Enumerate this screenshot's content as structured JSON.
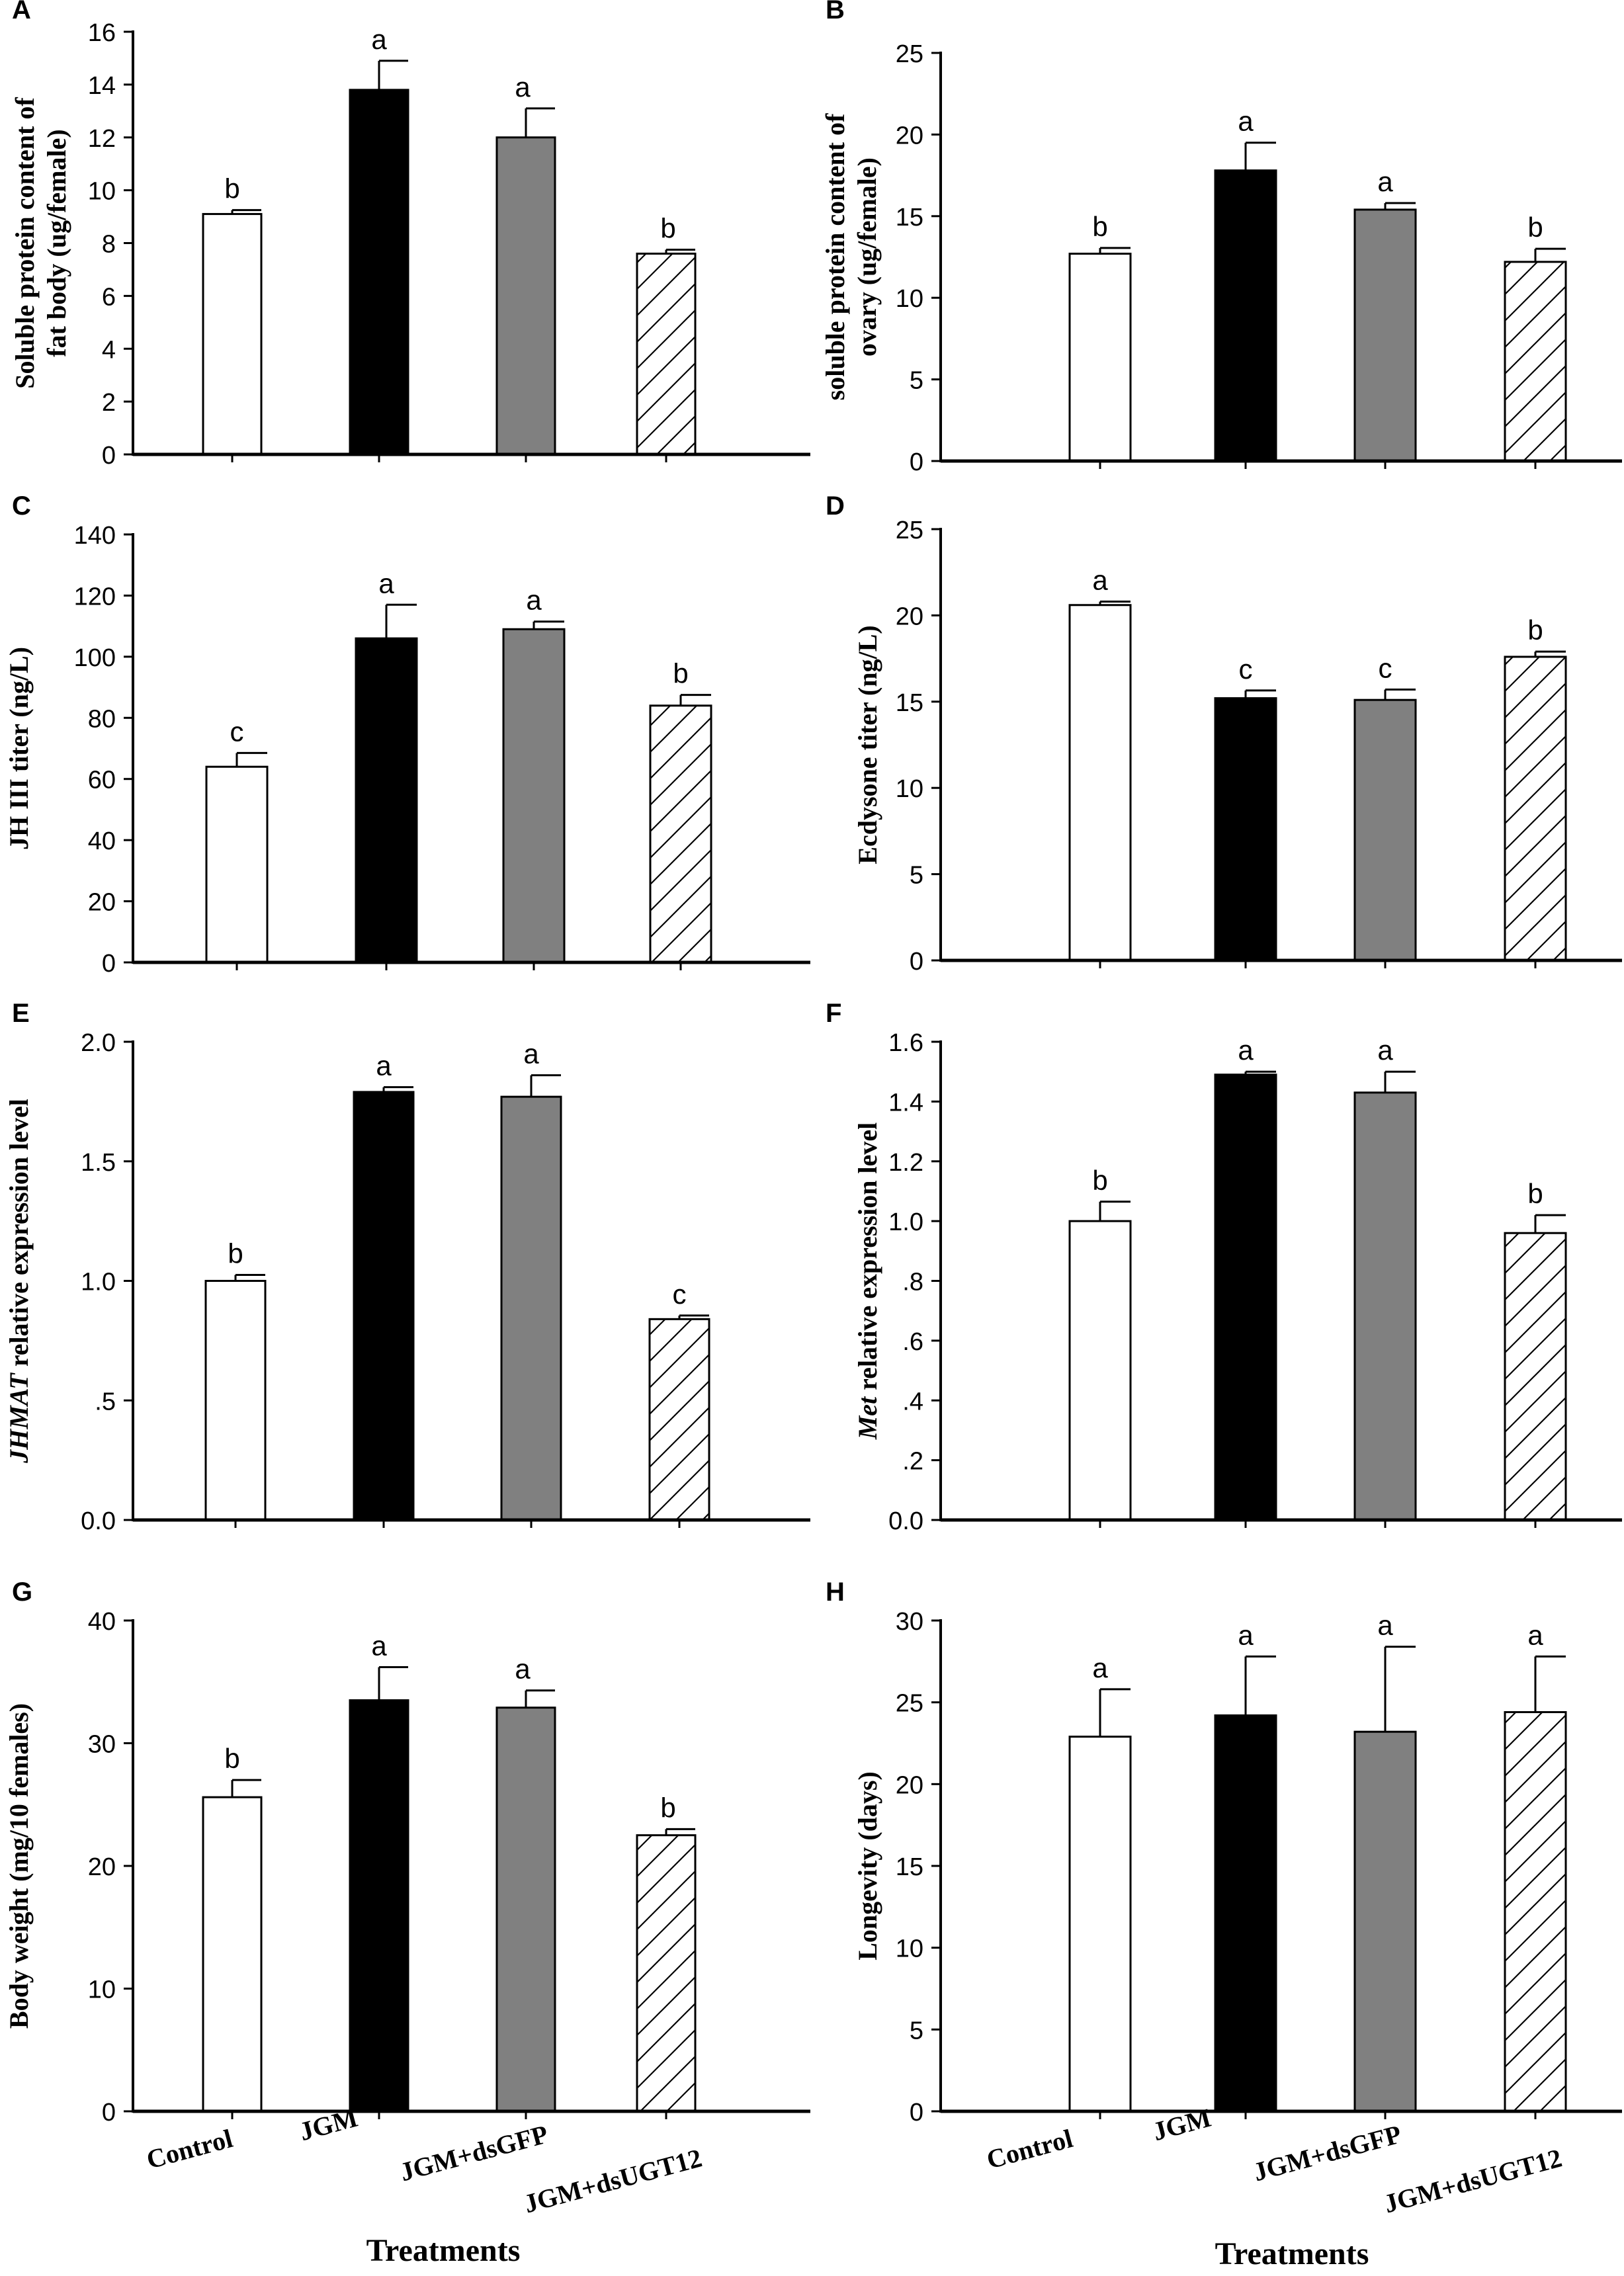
{
  "colors": {
    "control": "#ffffff",
    "jgm": "#000000",
    "jgm_dsgfp": "#808080",
    "hatch": "#000000",
    "axis": "#000000"
  },
  "categories": [
    "Control",
    "JGM",
    "JGM+dsGFP",
    "JGM+dsUGT12"
  ],
  "bar_styles": [
    "white",
    "black",
    "gray",
    "hatch"
  ],
  "x_axis_title": "Treatments",
  "chart_data": [
    {
      "type": "bar",
      "panel": "A",
      "ylabel_lines": [
        "Soluble protein content of",
        "fat body (ug/female)"
      ],
      "ylim": [
        0,
        16
      ],
      "ticks": [
        {
          "v": 0,
          "label": "0"
        },
        {
          "v": 2,
          "label": "2"
        },
        {
          "v": 4,
          "label": "4"
        },
        {
          "v": 6,
          "label": "6"
        },
        {
          "v": 8,
          "label": "8"
        },
        {
          "v": 10,
          "label": "10"
        },
        {
          "v": 12,
          "label": "12"
        },
        {
          "v": 14,
          "label": "14"
        },
        {
          "v": 16,
          "label": "16"
        }
      ],
      "values": [
        9.1,
        13.8,
        12.0,
        7.6
      ],
      "errors": [
        0.15,
        1.1,
        1.1,
        0.15
      ],
      "letters": [
        "b",
        "a",
        "a",
        "b"
      ]
    },
    {
      "type": "bar",
      "panel": "B",
      "ylabel_lines": [
        "soluble protein content of",
        "ovary (ug/female)"
      ],
      "ylim": [
        0,
        25
      ],
      "ticks": [
        {
          "v": 0,
          "label": "0"
        },
        {
          "v": 5,
          "label": "5"
        },
        {
          "v": 10,
          "label": "10"
        },
        {
          "v": 15,
          "label": "15"
        },
        {
          "v": 20,
          "label": "20"
        },
        {
          "v": 25,
          "label": "25"
        }
      ],
      "values": [
        12.7,
        17.8,
        15.4,
        12.2
      ],
      "errors": [
        0.35,
        1.7,
        0.4,
        0.8
      ],
      "letters": [
        "b",
        "a",
        "a",
        "b"
      ]
    },
    {
      "type": "bar",
      "panel": "C",
      "ylabel_lines": [
        "JH III titer (ng/L)"
      ],
      "ylim": [
        0,
        140
      ],
      "ticks": [
        {
          "v": 0,
          "label": "0"
        },
        {
          "v": 20,
          "label": "20"
        },
        {
          "v": 40,
          "label": "40"
        },
        {
          "v": 60,
          "label": "60"
        },
        {
          "v": 80,
          "label": "80"
        },
        {
          "v": 100,
          "label": "100"
        },
        {
          "v": 120,
          "label": "120"
        },
        {
          "v": 140,
          "label": "140"
        }
      ],
      "values": [
        64,
        106,
        109,
        84
      ],
      "errors": [
        4.5,
        11,
        2.5,
        3.5
      ],
      "letters": [
        "c",
        "a",
        "a",
        "b"
      ]
    },
    {
      "type": "bar",
      "panel": "D",
      "ylabel_lines": [
        "Ecdysone titer (ng/L)"
      ],
      "ylim": [
        0,
        25
      ],
      "ticks": [
        {
          "v": 0,
          "label": "0"
        },
        {
          "v": 5,
          "label": "5"
        },
        {
          "v": 10,
          "label": "10"
        },
        {
          "v": 15,
          "label": "15"
        },
        {
          "v": 20,
          "label": "20"
        },
        {
          "v": 25,
          "label": "25"
        }
      ],
      "values": [
        20.6,
        15.2,
        15.1,
        17.6
      ],
      "errors": [
        0.2,
        0.45,
        0.6,
        0.3
      ],
      "letters": [
        "a",
        "c",
        "c",
        "b"
      ]
    },
    {
      "type": "bar",
      "panel": "E",
      "ylabel_parts": [
        {
          "text": "JHMAT",
          "italic": true
        },
        {
          "text": " relative expression level",
          "italic": false
        }
      ],
      "ylim": [
        0,
        2.0
      ],
      "ticks": [
        {
          "v": 0,
          "label": "0.0"
        },
        {
          "v": 0.5,
          "label": ".5"
        },
        {
          "v": 1.0,
          "label": "1.0"
        },
        {
          "v": 1.5,
          "label": "1.5"
        },
        {
          "v": 2.0,
          "label": "2.0"
        }
      ],
      "values": [
        1.0,
        1.79,
        1.77,
        0.84
      ],
      "errors": [
        0.025,
        0.02,
        0.09,
        0.015
      ],
      "letters": [
        "b",
        "a",
        "a",
        "c"
      ]
    },
    {
      "type": "bar",
      "panel": "F",
      "ylabel_parts": [
        {
          "text": "Met",
          "italic": true
        },
        {
          "text": " relative expression level",
          "italic": false
        }
      ],
      "ylim": [
        0,
        1.6
      ],
      "ticks": [
        {
          "v": 0,
          "label": "0.0"
        },
        {
          "v": 0.2,
          "label": ".2"
        },
        {
          "v": 0.4,
          "label": ".4"
        },
        {
          "v": 0.6,
          "label": ".6"
        },
        {
          "v": 0.8,
          "label": ".8"
        },
        {
          "v": 1.0,
          "label": "1.0"
        },
        {
          "v": 1.2,
          "label": "1.2"
        },
        {
          "v": 1.4,
          "label": "1.4"
        },
        {
          "v": 1.6,
          "label": "1.6"
        }
      ],
      "values": [
        1.0,
        1.49,
        1.43,
        0.96
      ],
      "errors": [
        0.065,
        0.01,
        0.07,
        0.06
      ],
      "letters": [
        "b",
        "a",
        "a",
        "b"
      ]
    },
    {
      "type": "bar",
      "panel": "G",
      "ylabel_lines": [
        "Body weight  (mg/10 females)"
      ],
      "ylim": [
        0,
        40
      ],
      "ticks": [
        {
          "v": 0,
          "label": "0"
        },
        {
          "v": 10,
          "label": "10"
        },
        {
          "v": 20,
          "label": "20"
        },
        {
          "v": 30,
          "label": "30"
        },
        {
          "v": 40,
          "label": "40"
        }
      ],
      "values": [
        25.6,
        33.5,
        32.9,
        22.5
      ],
      "errors": [
        1.4,
        2.7,
        1.4,
        0.5
      ],
      "letters": [
        "b",
        "a",
        "a",
        "b"
      ]
    },
    {
      "type": "bar",
      "panel": "H",
      "ylabel_lines": [
        "Longevity (days)"
      ],
      "ylim": [
        0,
        30
      ],
      "ticks": [
        {
          "v": 0,
          "label": "0"
        },
        {
          "v": 5,
          "label": "5"
        },
        {
          "v": 10,
          "label": "10"
        },
        {
          "v": 15,
          "label": "15"
        },
        {
          "v": 20,
          "label": "20"
        },
        {
          "v": 25,
          "label": "25"
        },
        {
          "v": 30,
          "label": "30"
        }
      ],
      "values": [
        22.9,
        24.2,
        23.2,
        24.4
      ],
      "errors": [
        2.9,
        3.6,
        5.2,
        3.4
      ],
      "letters": [
        "a",
        "a",
        "a",
        "a"
      ]
    }
  ]
}
